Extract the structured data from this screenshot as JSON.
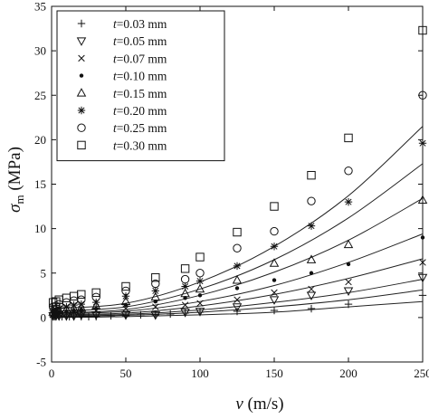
{
  "chart_data": {
    "type": "scatter",
    "xlabel": {
      "symbol": "v",
      "unit": " (m/s)"
    },
    "ylabel": {
      "symbol": "σ",
      "subscript": "m",
      "unit": " (MPa)"
    },
    "xlim": [
      0,
      250
    ],
    "ylim": [
      -5,
      35
    ],
    "xticks": [
      0,
      50,
      100,
      150,
      200,
      250
    ],
    "yticks": [
      -5,
      0,
      5,
      10,
      15,
      20,
      25,
      30,
      35
    ],
    "grid": false,
    "legend_position": "top-left",
    "fit_lines": true,
    "series": [
      {
        "name": {
          "var": "t",
          "text": "=0.03 mm"
        },
        "marker": "plus",
        "x": [
          1,
          2,
          3,
          5,
          7,
          10,
          12,
          15,
          20,
          25,
          30,
          40,
          50,
          60,
          70,
          80,
          90,
          100,
          125,
          150,
          175,
          200,
          250
        ],
        "y": [
          0.1,
          0.1,
          0.1,
          0.1,
          0.1,
          0.1,
          0.1,
          0.1,
          0.1,
          0.1,
          0.1,
          0.2,
          0.2,
          0.3,
          0.3,
          0.4,
          0.5,
          0.6,
          0.7,
          0.8,
          1.0,
          1.5,
          2.5
        ],
        "fit": [
          0,
          0.1,
          0.3,
          0.6,
          1.2,
          1.8,
          2.6
        ]
      },
      {
        "name": {
          "var": "t",
          "text": "=0.05 mm"
        },
        "marker": "triangle-down",
        "x": [
          1,
          3,
          5,
          10,
          15,
          20,
          30,
          50,
          70,
          90,
          100,
          125,
          150,
          175,
          200,
          250
        ],
        "y": [
          0.2,
          0.2,
          0.2,
          0.2,
          0.2,
          0.3,
          0.3,
          0.3,
          0.3,
          0.6,
          0.7,
          1.2,
          2.0,
          2.5,
          3.0,
          4.5
        ],
        "fit": [
          0.1,
          0.25,
          0.6,
          1.2,
          2.0,
          3.1,
          4.4
        ]
      },
      {
        "name": {
          "var": "t",
          "text": "=0.07 mm"
        },
        "marker": "x",
        "x": [
          1,
          3,
          5,
          10,
          15,
          20,
          30,
          50,
          70,
          90,
          100,
          125,
          150,
          175,
          200,
          250
        ],
        "y": [
          0.3,
          0.3,
          0.4,
          0.5,
          0.6,
          0.6,
          0.8,
          1.0,
          1.2,
          1.4,
          1.6,
          2.0,
          2.8,
          3.2,
          4.0,
          6.2
        ],
        "fit": [
          0.2,
          0.35,
          0.85,
          1.7,
          2.8,
          4.3,
          6.2
        ]
      },
      {
        "name": {
          "var": "t",
          "text": "=0.10 mm"
        },
        "marker": "dot",
        "x": [
          1,
          3,
          5,
          10,
          15,
          20,
          30,
          50,
          70,
          90,
          100,
          125,
          150,
          175,
          200,
          250
        ],
        "y": [
          0.5,
          0.5,
          0.6,
          0.7,
          0.8,
          0.9,
          1.0,
          1.4,
          1.8,
          2.2,
          2.5,
          3.3,
          4.2,
          5.0,
          6.0,
          9.0
        ],
        "fit": [
          0.3,
          0.5,
          1.3,
          2.6,
          4.4,
          6.6,
          9.4
        ]
      },
      {
        "name": {
          "var": "t",
          "text": "=0.15 mm"
        },
        "marker": "triangle-up",
        "x": [
          1,
          3,
          5,
          10,
          15,
          20,
          30,
          50,
          70,
          90,
          100,
          125,
          150,
          175,
          200,
          250
        ],
        "y": [
          0.6,
          0.7,
          0.8,
          0.9,
          1.0,
          1.1,
          1.3,
          1.8,
          2.3,
          2.7,
          3.2,
          4.2,
          6.1,
          6.5,
          8.2,
          13.2
        ],
        "fit": [
          0.4,
          0.7,
          1.8,
          3.6,
          6.2,
          9.4,
          13.3
        ]
      },
      {
        "name": {
          "var": "t",
          "text": "=0.20 mm"
        },
        "marker": "asterisk",
        "x": [
          1,
          3,
          5,
          10,
          15,
          20,
          30,
          50,
          70,
          90,
          100,
          125,
          150,
          175,
          200,
          250
        ],
        "y": [
          0.8,
          0.9,
          1.0,
          1.2,
          1.4,
          1.5,
          1.7,
          2.4,
          3.0,
          3.5,
          4.1,
          5.8,
          8.0,
          10.3,
          13.0,
          19.6
        ],
        "fit": [
          0.5,
          0.9,
          2.5,
          5.1,
          8.7,
          13.4,
          19.5
        ]
      },
      {
        "name": {
          "var": "t",
          "text": "=0.25 mm"
        },
        "marker": "circle",
        "x": [
          1,
          3,
          5,
          10,
          15,
          20,
          30,
          50,
          70,
          90,
          100,
          125,
          150,
          175,
          200,
          250
        ],
        "y": [
          1.2,
          1.3,
          1.5,
          1.7,
          1.9,
          2.0,
          2.3,
          3.0,
          3.8,
          4.3,
          5.0,
          7.8,
          9.7,
          13.1,
          16.5,
          25.0
        ],
        "fit": [
          0.7,
          1.2,
          3.2,
          6.5,
          11.2,
          17.3,
          25.0
        ]
      },
      {
        "name": {
          "var": "t",
          "text": "=0.30 mm"
        },
        "marker": "square",
        "x": [
          1,
          3,
          5,
          10,
          15,
          20,
          30,
          50,
          70,
          90,
          100,
          125,
          150,
          175,
          200,
          250
        ],
        "y": [
          1.7,
          1.8,
          2.0,
          2.2,
          2.4,
          2.6,
          2.8,
          3.5,
          4.5,
          5.5,
          6.8,
          9.6,
          12.5,
          16.0,
          20.2,
          32.3
        ],
        "fit": [
          1.0,
          1.6,
          4.0,
          8.0,
          13.7,
          21.5,
          32.0
        ]
      }
    ]
  }
}
